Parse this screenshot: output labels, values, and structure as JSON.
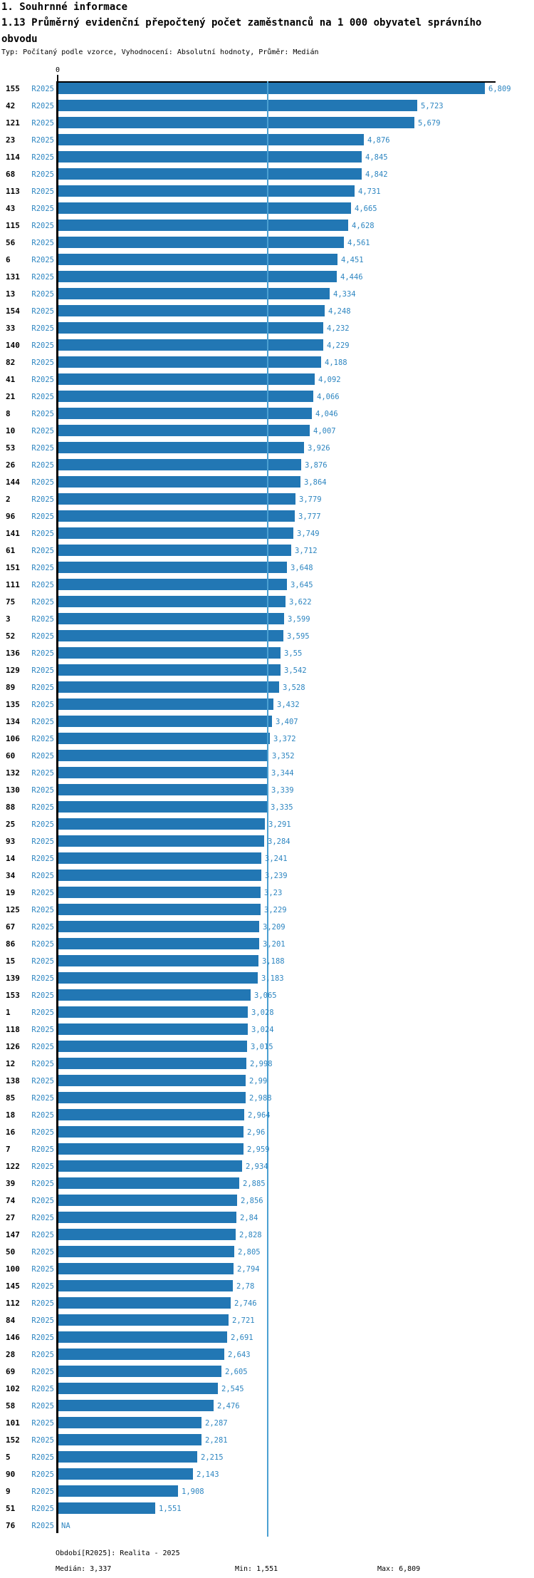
{
  "header": {
    "section_title": "1. Souhrnné informace",
    "indicator_title": "1.13 Průměrný evidenční přepočtený počet zaměstnanců na 1 000 obyvatel správního obvodu",
    "meta": "Typ: Počítaný podle vzorce, Vyhodnocení: Absolutní hodnoty, Průměr: Medián"
  },
  "chart_data": {
    "type": "bar",
    "orientation": "horizontal",
    "title": "1.13 Průměrný evidenční přepočtený počet zaměstnanců na 1 000 obyvatel správního obvodu",
    "series_label": "R2025",
    "axis_zero_label": "0",
    "xlim": [
      0,
      6.85
    ],
    "grid": false,
    "categories": [
      "155",
      "42",
      "121",
      "23",
      "114",
      "68",
      "113",
      "43",
      "115",
      "56",
      "6",
      "131",
      "13",
      "154",
      "33",
      "140",
      "82",
      "41",
      "21",
      "8",
      "10",
      "53",
      "26",
      "144",
      "2",
      "96",
      "141",
      "61",
      "151",
      "111",
      "75",
      "3",
      "52",
      "136",
      "129",
      "89",
      "135",
      "134",
      "106",
      "60",
      "132",
      "130",
      "88",
      "25",
      "93",
      "14",
      "34",
      "19",
      "125",
      "67",
      "86",
      "15",
      "139",
      "153",
      "1",
      "118",
      "126",
      "12",
      "138",
      "85",
      "18",
      "16",
      "7",
      "122",
      "39",
      "74",
      "27",
      "147",
      "50",
      "100",
      "145",
      "112",
      "84",
      "146",
      "28",
      "69",
      "102",
      "58",
      "101",
      "152",
      "5",
      "90",
      "9",
      "51",
      "76"
    ],
    "values": [
      6.809,
      5.723,
      5.679,
      4.876,
      4.845,
      4.842,
      4.731,
      4.665,
      4.628,
      4.561,
      4.451,
      4.446,
      4.334,
      4.248,
      4.232,
      4.229,
      4.188,
      4.092,
      4.066,
      4.046,
      4.007,
      3.926,
      3.876,
      3.864,
      3.779,
      3.777,
      3.749,
      3.712,
      3.648,
      3.645,
      3.622,
      3.599,
      3.595,
      3.55,
      3.542,
      3.528,
      3.432,
      3.407,
      3.372,
      3.352,
      3.344,
      3.339,
      3.335,
      3.291,
      3.284,
      3.241,
      3.239,
      3.23,
      3.229,
      3.209,
      3.201,
      3.188,
      3.183,
      3.065,
      3.028,
      3.024,
      3.015,
      2.998,
      2.99,
      2.988,
      2.964,
      2.96,
      2.959,
      2.934,
      2.885,
      2.856,
      2.84,
      2.828,
      2.805,
      2.794,
      2.78,
      2.746,
      2.721,
      2.691,
      2.643,
      2.605,
      2.545,
      2.476,
      2.287,
      2.281,
      2.215,
      2.143,
      1.908,
      1.551,
      null
    ],
    "value_labels": [
      "6,809",
      "5,723",
      "5,679",
      "4,876",
      "4,845",
      "4,842",
      "4,731",
      "4,665",
      "4,628",
      "4,561",
      "4,451",
      "4,446",
      "4,334",
      "4,248",
      "4,232",
      "4,229",
      "4,188",
      "4,092",
      "4,066",
      "4,046",
      "4,007",
      "3,926",
      "3,876",
      "3,864",
      "3,779",
      "3,777",
      "3,749",
      "3,712",
      "3,648",
      "3,645",
      "3,622",
      "3,599",
      "3,595",
      "3,55",
      "3,542",
      "3,528",
      "3,432",
      "3,407",
      "3,372",
      "3,352",
      "3,344",
      "3,339",
      "3,335",
      "3,291",
      "3,284",
      "3,241",
      "3,239",
      "3,23",
      "3,229",
      "3,209",
      "3,201",
      "3,188",
      "3,183",
      "3,065",
      "3,028",
      "3,024",
      "3,015",
      "2,998",
      "2,99",
      "2,988",
      "2,964",
      "2,96",
      "2,959",
      "2,934",
      "2,885",
      "2,856",
      "2,84",
      "2,828",
      "2,805",
      "2,794",
      "2,78",
      "2,746",
      "2,721",
      "2,691",
      "2,643",
      "2,605",
      "2,545",
      "2,476",
      "2,287",
      "2,281",
      "2,215",
      "2,143",
      "1,908",
      "1,551",
      "NA"
    ],
    "median": 3.337,
    "min": 1.551,
    "max": 6.809,
    "colors": {
      "bar": "#2277b4",
      "median_line": "#4ba0d2",
      "label_text": "#2e86c1",
      "category_text": "#000000",
      "axis": "#000000"
    }
  },
  "footer": {
    "period": "Období[R2025]: Realita - 2025",
    "median": "Medián: 3,337",
    "min": "Min: 1,551",
    "max": "Max: 6,809"
  }
}
